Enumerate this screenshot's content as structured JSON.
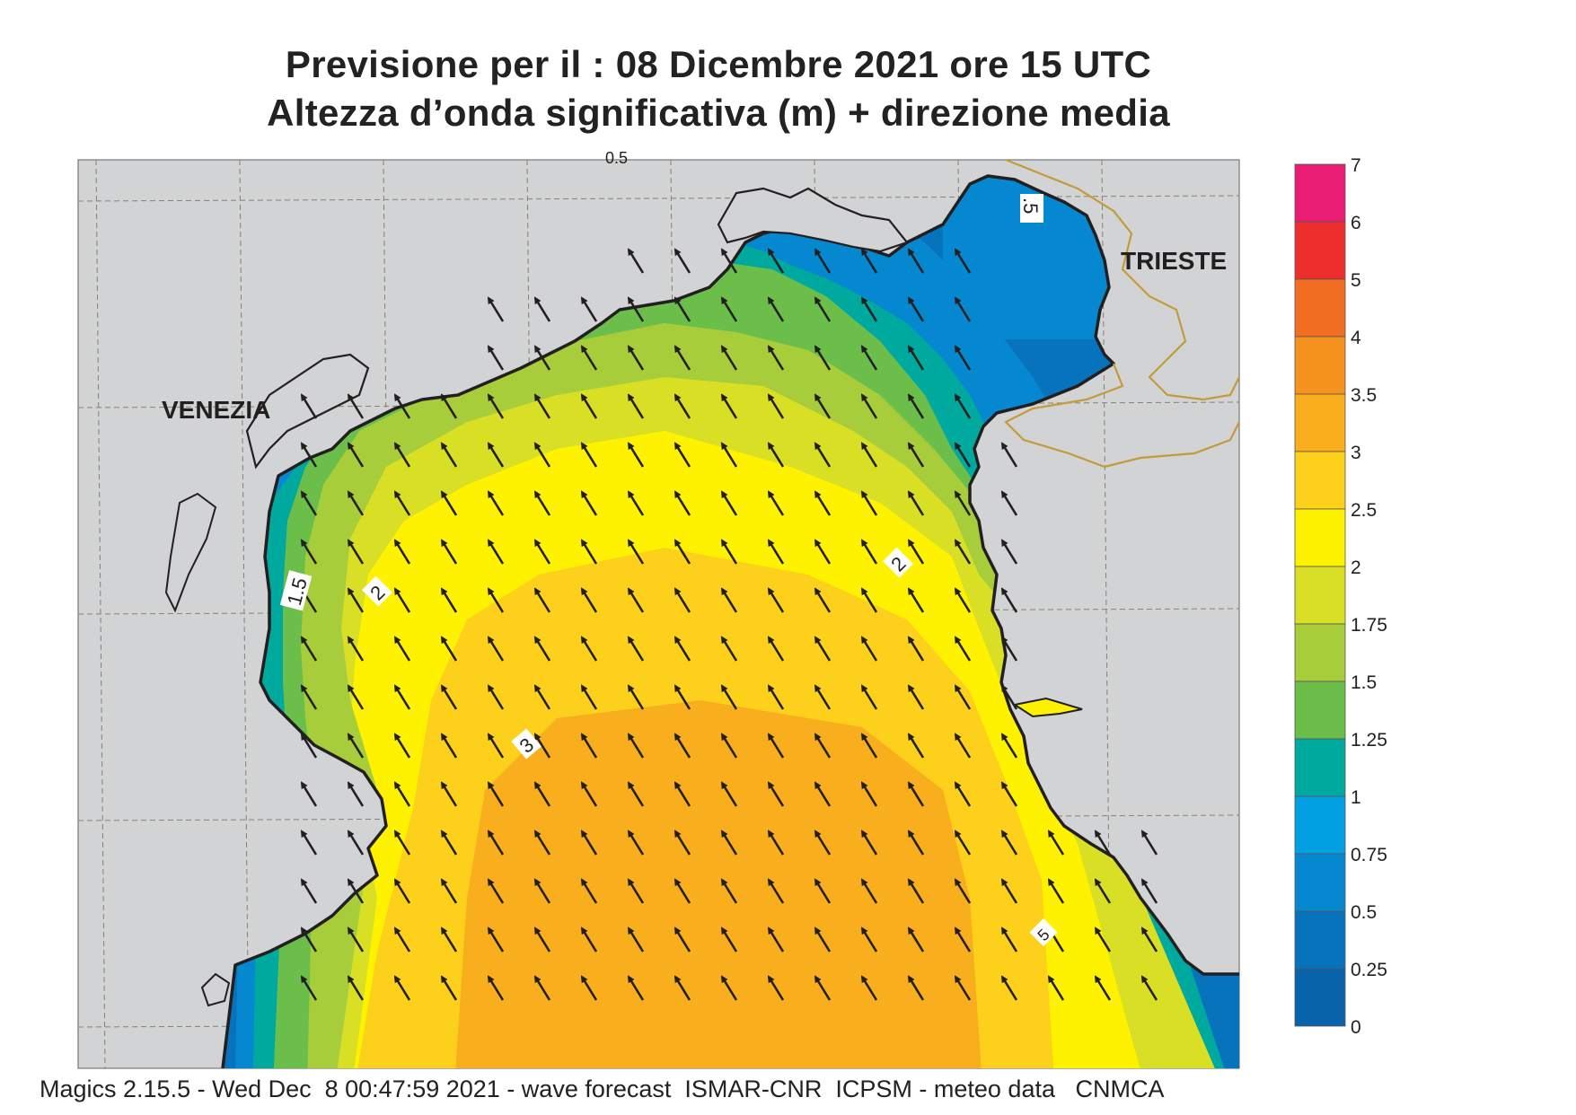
{
  "title": {
    "line1": "Previsione per il  :  08 Dicembre  2021   ore 15 UTC",
    "line2": "Altezza d’onda significativa (m) + direzione media"
  },
  "footer": "Magics 2.15.5 - Wed Dec  8 00:47:59 2021 - wave forecast  ISMAR-CNR  ICPSM - meteo data   CNMCA",
  "places": {
    "venezia": "VENEZIA",
    "trieste": "TRIESTE"
  },
  "contour_labels": [
    "1.5",
    "2",
    "3",
    "2",
    ".5",
    "0.5",
    "5"
  ],
  "legend": {
    "ticks": [
      "7",
      "6",
      "5",
      "4",
      "3.5",
      "3",
      "2.5",
      "2",
      "1.75",
      "1.5",
      "1.25",
      "1",
      "0.75",
      "0.5",
      "0.25",
      "0"
    ],
    "colors": [
      "#ea1d74",
      "#ee2d2d",
      "#f26e22",
      "#f6921e",
      "#f9ae1d",
      "#fdd11b",
      "#fff200",
      "#d8df25",
      "#a8cd3a",
      "#6cbe4b",
      "#00a99d",
      "#00a0e3",
      "#0688d0",
      "#0773bd",
      "#0963ab"
    ]
  },
  "wave_colors": {
    "land": "#d1d3d4",
    "r0": "#0773bd",
    "r1": "#0688d0",
    "r2": "#00a99d",
    "r3": "#6cbe4b",
    "r4": "#a8cd3a",
    "r5": "#d8df25",
    "r6": "#fff200",
    "r7": "#fdd11b",
    "r8": "#f9ae1d"
  },
  "mean_direction": "NNW"
}
